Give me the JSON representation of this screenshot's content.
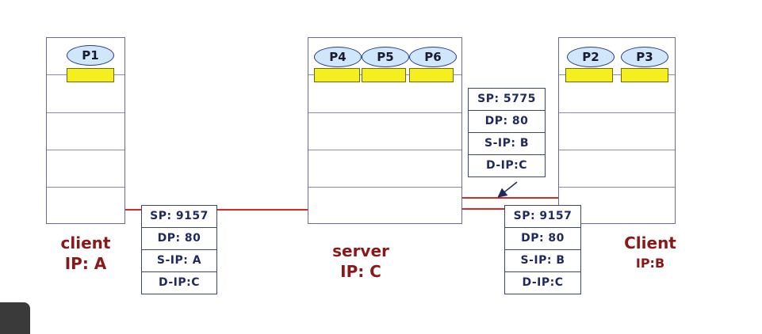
{
  "hosts": [
    {
      "id": "client-a",
      "processes": [
        "P1"
      ],
      "label_line1": "client",
      "label_line2": "IP: A"
    },
    {
      "id": "server-c",
      "processes": [
        "P4",
        "P5",
        "P6"
      ],
      "label_line1": "server",
      "label_line2": "IP: C"
    },
    {
      "id": "client-b",
      "processes": [
        "P2",
        "P3"
      ],
      "label_line1": "Client",
      "label_line2": "IP:B"
    }
  ],
  "segments": [
    {
      "id": "seg-a",
      "fields": [
        "SP: 9157",
        "DP: 80",
        "S-IP: A",
        "D-IP:C"
      ]
    },
    {
      "id": "seg-b1",
      "fields": [
        "SP: 5775",
        "DP: 80",
        "S-IP: B",
        "D-IP:C"
      ]
    },
    {
      "id": "seg-b2",
      "fields": [
        "SP: 9157",
        "DP: 80",
        "S-IP: B",
        "D-IP:C"
      ]
    }
  ],
  "colors": {
    "wire": "#d92626",
    "socket": "#f5ef1f",
    "process": "#cfe6fb",
    "label": "#8b1818",
    "segment_text": "#1f2a5c"
  }
}
